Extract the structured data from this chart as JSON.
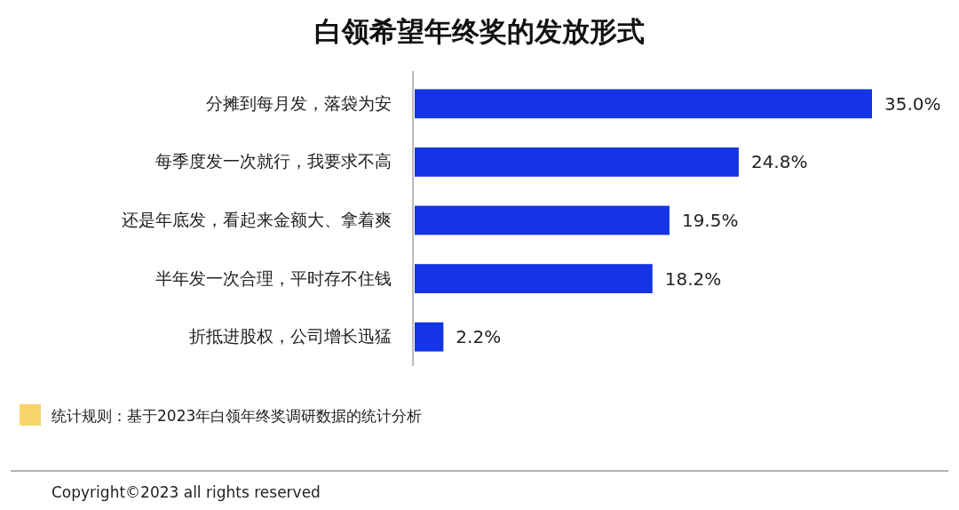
{
  "chart_data": {
    "type": "bar",
    "orientation": "horizontal",
    "title": "白领希望年终奖的发放形式",
    "categories": [
      "分摊到每月发，落袋为安",
      "每季度发一次就行，我要求不高",
      "还是年底发，看起来金额大、拿着爽",
      "半年发一次合理，平时存不住钱",
      "折抵进股权，公司增长迅猛"
    ],
    "values": [
      35.0,
      24.8,
      19.5,
      18.2,
      2.2
    ],
    "value_labels": [
      "35.0%",
      "24.8%",
      "19.5%",
      "18.2%",
      "2.2%"
    ],
    "color": "#1434e6",
    "xlim": [
      0,
      35
    ],
    "tick_labels": "y",
    "annotations": [
      "统计规则：基于2023年白领年终奖调研数据的统计分析",
      "Copyright©2023 all rights reserved"
    ]
  }
}
